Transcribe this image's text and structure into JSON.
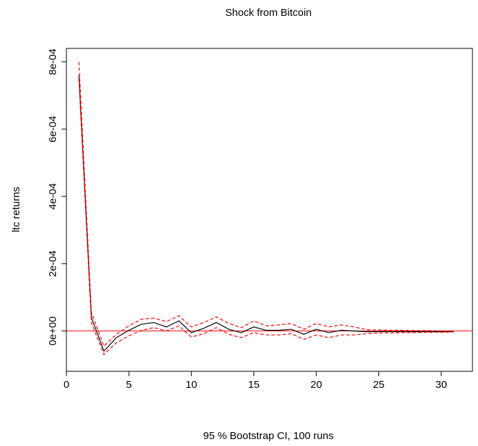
{
  "chart_data": {
    "type": "line",
    "title": "Shock from Bitcoin",
    "xlabel": "95 % Bootstrap CI,  100 runs",
    "ylabel": "ltc returns",
    "xlim": [
      0,
      32.5
    ],
    "ylim": [
      -0.00012,
      0.00084
    ],
    "xticks": [
      0,
      5,
      10,
      15,
      20,
      25,
      30
    ],
    "xtick_labels": [
      "0",
      "5",
      "10",
      "15",
      "20",
      "25",
      "30"
    ],
    "yticks": [
      0,
      0.0002,
      0.0004,
      0.0006,
      0.0008
    ],
    "ytick_labels": [
      "0e+00",
      "2e-04",
      "4e-04",
      "6e-04",
      "8e-04"
    ],
    "grid": false,
    "zero_line_color": "#ff0000",
    "x": [
      1,
      2,
      3,
      4,
      5,
      6,
      7,
      8,
      9,
      10,
      11,
      12,
      13,
      14,
      15,
      16,
      17,
      18,
      19,
      20,
      21,
      22,
      23,
      24,
      25,
      26,
      27,
      28,
      29,
      30,
      31
    ],
    "series": [
      {
        "color": "#000000",
        "dash": "solid",
        "values": [
          0.00076,
          4e-05,
          -6e-05,
          -2e-05,
          2e-06,
          2e-05,
          2.5e-05,
          1.2e-05,
          3e-05,
          -5e-06,
          8e-06,
          2.5e-05,
          5e-06,
          -5e-06,
          1.2e-05,
          2e-06,
          2e-06,
          5e-06,
          -1e-05,
          5e-06,
          -5e-06,
          2e-06,
          0.0,
          -2e-06,
          -2e-06,
          -2e-06,
          -2e-06,
          -2e-06,
          -2e-06,
          -2e-06,
          -2e-06
        ]
      },
      {
        "color": "#ff0000",
        "dash": "dashed",
        "values": [
          0.0008,
          5.5e-05,
          -4.5e-05,
          -1e-05,
          1.5e-05,
          3.5e-05,
          3.8e-05,
          2.8e-05,
          4.5e-05,
          1.2e-05,
          2.5e-05,
          4.2e-05,
          2.2e-05,
          1e-05,
          3e-05,
          1.5e-05,
          1.8e-05,
          2.2e-05,
          5e-06,
          2.2e-05,
          1.2e-05,
          1.8e-05,
          1.2e-05,
          4e-06,
          3e-06,
          2e-06,
          2e-06,
          1e-06,
          1e-06,
          0.0,
          0.0
        ]
      },
      {
        "color": "#ff0000",
        "dash": "dashed",
        "values": [
          0.00075,
          2.5e-05,
          -7e-05,
          -3.5e-05,
          -1.5e-05,
          2e-06,
          1e-05,
          0.0,
          1.5e-05,
          -1.8e-05,
          -8e-06,
          1e-05,
          -1e-05,
          -2e-05,
          -5e-06,
          -1.2e-05,
          -1.2e-05,
          -8e-06,
          -2.5e-05,
          -1.2e-05,
          -2e-05,
          -1.2e-05,
          -1.2e-05,
          -8e-06,
          -6e-06,
          -6e-06,
          -5e-06,
          -5e-06,
          -4e-06,
          -4e-06,
          -3e-06
        ]
      }
    ]
  }
}
